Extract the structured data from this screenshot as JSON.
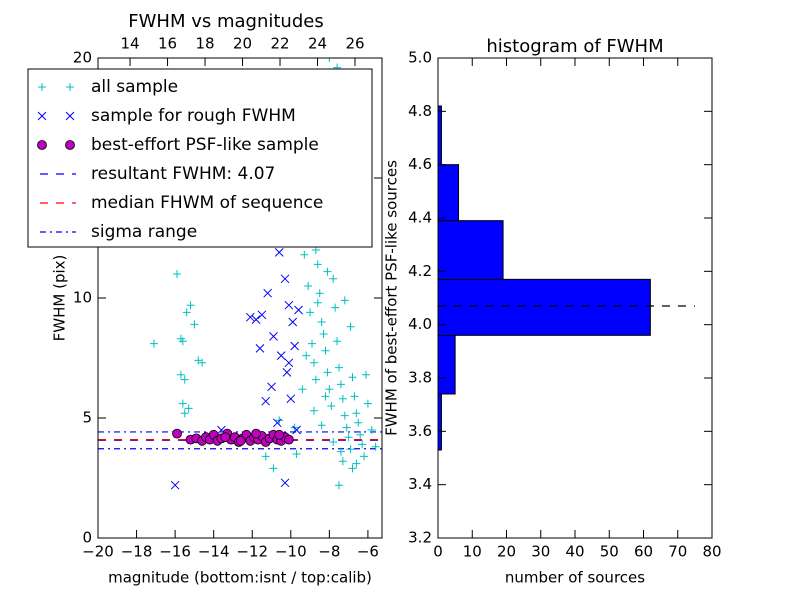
{
  "chart_data": [
    {
      "type": "scatter",
      "title": "FWHM vs magnitudes",
      "xlabel": "magnitude (bottom:isnt / top:calib)",
      "ylabel": "FWHM (pix)",
      "xlim": [
        -20,
        -5.27
      ],
      "xticks": [
        {
          "value": -20,
          "label": "−20"
        },
        {
          "value": -18,
          "label": "−18"
        },
        {
          "value": -16,
          "label": "−16"
        },
        {
          "value": -14,
          "label": "−14"
        },
        {
          "value": -12,
          "label": "−12"
        },
        {
          "value": -10,
          "label": "−10"
        },
        {
          "value": -8,
          "label": "−8"
        },
        {
          "value": -6,
          "label": "−6"
        }
      ],
      "x2lim": [
        12.29,
        27.44
      ],
      "x2ticks": [
        14,
        16,
        18,
        20,
        22,
        24,
        26
      ],
      "ylim": [
        0,
        20
      ],
      "yticks": [
        0,
        5,
        10,
        15,
        20
      ],
      "series": [
        {
          "name": "all sample",
          "color": "#00bfbf",
          "marker": "+",
          "x": [
            -17.1,
            -15.9,
            -15.7,
            -15.6,
            -15.4,
            -15.2,
            -15.0,
            -14.8,
            -14.6,
            -15.7,
            -15.5,
            -15.6,
            -15.3,
            -15.5,
            -12.3,
            -11.3,
            -10.6,
            -10.9,
            -9.7,
            -9.5,
            -9.3,
            -9.1,
            -9.0,
            -8.9,
            -8.8,
            -8.7,
            -8.6,
            -8.5,
            -8.4,
            -8.3,
            -8.2,
            -8.1,
            -8.0,
            -7.9,
            -7.8,
            -7.7,
            -7.6,
            -7.5,
            -7.4,
            -7.3,
            -7.2,
            -7.1,
            -7.0,
            -6.9,
            -6.8,
            -6.7,
            -6.6,
            -6.5,
            -6.4,
            -6.3,
            -6.2,
            -6.0,
            -5.8,
            -5.6,
            -8.0,
            -7.6,
            -8.3,
            -8.9,
            -7.9,
            -8.6,
            -9.2,
            -9.4,
            -8.8,
            -8.4,
            -7.8,
            -7.3,
            -6.8,
            -7.5,
            -6.1,
            -6.9,
            -7.2,
            -8.1,
            -7.4,
            -6.6,
            -9.8,
            -8.7,
            -8.2
          ],
          "values": [
            8.1,
            11.0,
            8.3,
            8.2,
            9.4,
            9.7,
            8.9,
            7.4,
            7.3,
            6.8,
            6.6,
            5.6,
            5.4,
            5.2,
            4.3,
            3.4,
            4.9,
            2.9,
            3.5,
            12.6,
            11.8,
            10.5,
            9.4,
            8.1,
            7.3,
            12.0,
            11.4,
            10.2,
            9.0,
            8.5,
            7.8,
            6.9,
            6.2,
            5.5,
            10.8,
            9.6,
            8.2,
            7.1,
            6.4,
            5.8,
            5.1,
            4.6,
            4.2,
            3.7,
            6.7,
            5.9,
            5.2,
            4.8,
            4.3,
            3.9,
            3.4,
            5.6,
            4.5,
            3.8,
            20.0,
            19.6,
            14.2,
            13.4,
            12.3,
            9.8,
            7.6,
            6.2,
            5.3,
            4.7,
            4.0,
            3.2,
            2.9,
            2.2,
            6.8,
            8.8,
            9.9,
            11.1,
            3.6,
            3.1,
            4.6,
            6.6,
            5.9
          ]
        },
        {
          "name": "sample for rough FWHM",
          "color": "#0000ff",
          "marker": "x",
          "x": [
            -16.0,
            -12.1,
            -11.8,
            -11.5,
            -11.1,
            -10.8,
            -10.6,
            -10.3,
            -10.1,
            -9.9,
            -11.2,
            -10.9,
            -10.5,
            -10.2,
            -10.0,
            -10.7,
            -11.0,
            -10.4,
            -9.6,
            -9.8,
            -10.1,
            -11.3,
            -10.3,
            -9.7,
            -13.6,
            -11.6
          ],
          "values": [
            2.2,
            9.2,
            9.1,
            9.3,
            12.4,
            13.2,
            11.9,
            10.8,
            9.7,
            9.0,
            10.2,
            8.4,
            7.6,
            6.9,
            5.8,
            4.8,
            6.3,
            12.3,
            9.5,
            8.0,
            7.3,
            5.7,
            2.3,
            4.5,
            4.5,
            7.9
          ]
        },
        {
          "name": "best-effort PSF-like sample",
          "color": "#bf00bf",
          "marker": "o",
          "x": [
            -15.9,
            -15.2,
            -14.9,
            -14.6,
            -14.4,
            -14.2,
            -14.0,
            -13.8,
            -13.6,
            -13.3,
            -13.1,
            -12.9,
            -12.7,
            -12.5,
            -12.3,
            -12.1,
            -11.9,
            -11.7,
            -11.5,
            -11.3,
            -11.1,
            -10.9,
            -10.7,
            -10.5,
            -10.3,
            -10.1,
            -11.8,
            -12.6,
            -13.4,
            -10.6
          ],
          "values": [
            4.35,
            4.1,
            4.15,
            4.05,
            4.2,
            4.1,
            4.3,
            4.05,
            4.15,
            4.35,
            4.1,
            4.2,
            4.0,
            4.15,
            4.3,
            4.05,
            4.2,
            4.1,
            4.25,
            4.0,
            4.15,
            4.3,
            4.1,
            4.05,
            4.2,
            4.1,
            4.35,
            4.05,
            4.2,
            4.3
          ]
        }
      ],
      "hlines": [
        {
          "name": "resultant FWHM: 4.07",
          "color": "#0000ff",
          "style": "dashed",
          "values": [
            4.07
          ]
        },
        {
          "name": "median FHWM of sequence",
          "color": "#ff0000",
          "style": "dashed",
          "values": [
            4.1
          ]
        },
        {
          "name": "sigma range",
          "color": "#0000ff",
          "style": "dashdot",
          "values": [
            4.42,
            3.72
          ]
        }
      ]
    },
    {
      "type": "histogram",
      "orientation": "horizontal",
      "title": "histogram of FWHM",
      "xlabel": "number of sources",
      "ylabel": "FWHM of best-effort PSF-like sources",
      "bins": [
        3.53,
        3.74,
        3.96,
        4.17,
        4.39,
        4.6,
        4.82
      ],
      "values": [
        1,
        5,
        62,
        19,
        6,
        1
      ],
      "color": "#0000ff",
      "xlim": [
        0,
        80
      ],
      "xticks": [
        0,
        10,
        20,
        30,
        40,
        50,
        60,
        70,
        80
      ],
      "ylim": [
        3.2,
        5.0
      ],
      "yticks": [
        3.2,
        3.4,
        3.6,
        3.8,
        {
          "value": 4.0,
          "label": "4.0"
        },
        4.2,
        4.4,
        4.6,
        4.8,
        {
          "value": 5.0,
          "label": "5.0"
        }
      ],
      "hlines": [
        {
          "color": "#000000",
          "style": "dashed",
          "values": [
            4.07
          ],
          "xlim": [
            0,
            75
          ]
        }
      ]
    }
  ]
}
